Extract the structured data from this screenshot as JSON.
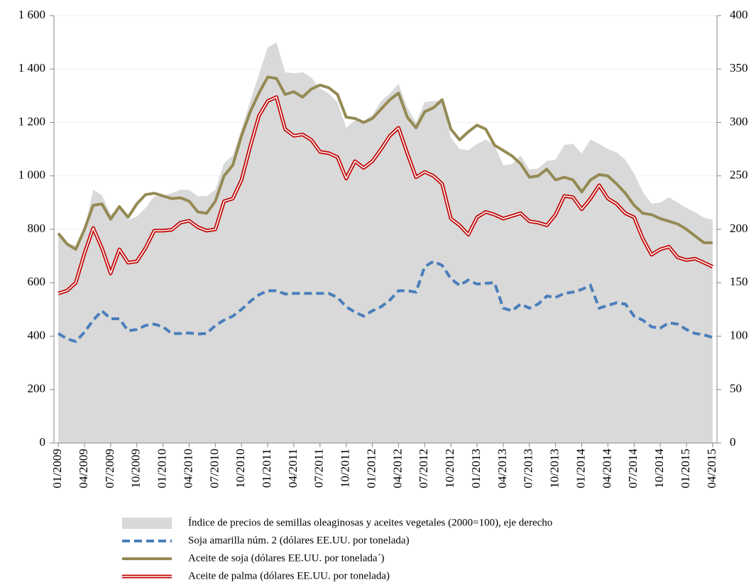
{
  "chart_data": {
    "type": "line",
    "categories": [
      "01/2009",
      null,
      null,
      "04/2009",
      null,
      null,
      "07/2009",
      null,
      null,
      "10/2009",
      null,
      null,
      "01/2010",
      null,
      null,
      "04/2010",
      null,
      null,
      "07/2010",
      null,
      null,
      "10/2010",
      null,
      null,
      "01/2011",
      null,
      null,
      "04/2011",
      null,
      null,
      "07/2011",
      null,
      null,
      "10/2011",
      null,
      null,
      "01/2012",
      null,
      null,
      "04/2012",
      null,
      null,
      "07/2012",
      null,
      null,
      "10/2012",
      null,
      null,
      "01/2013",
      null,
      null,
      "04/2013",
      null,
      null,
      "07/2013",
      null,
      null,
      "10/2013",
      null,
      null,
      "01/2014",
      null,
      null,
      "04/2014",
      null,
      null,
      "07/2014",
      null,
      null,
      "10/2014",
      null,
      null,
      "01/2015",
      null,
      null,
      "04/2015"
    ],
    "series": [
      {
        "name": "Índice de precios de semillas oleaginosas y aceites vegetales (2000=100), eje derecho",
        "color": "#d9d9d9",
        "style": "area",
        "axis": "y2",
        "values": [
          194,
          186,
          185,
          200,
          237,
          232,
          214,
          220,
          209,
          212,
          220,
          231,
          231,
          234,
          237,
          237,
          231,
          231,
          237,
          262,
          269,
          294,
          320,
          345,
          370,
          375,
          347,
          346,
          347,
          342,
          332,
          327,
          319,
          295,
          302,
          301,
          307,
          320,
          327,
          336,
          314,
          300,
          319,
          320,
          321,
          286,
          275,
          274,
          280,
          284,
          279,
          260,
          261,
          269,
          256,
          257,
          264,
          265,
          279,
          280,
          271,
          284,
          280,
          275,
          272,
          265,
          252,
          235,
          224,
          225,
          230,
          225,
          220,
          216,
          211,
          209
        ]
      },
      {
        "name": "Soja amarilla núm. 2 (dólares EE.UU. por tonelada)",
        "color": "#4a7ebb",
        "style": "dashed",
        "values": [
          410,
          390,
          380,
          415,
          460,
          495,
          465,
          465,
          420,
          425,
          440,
          445,
          435,
          410,
          410,
          412,
          408,
          410,
          440,
          460,
          475,
          500,
          530,
          555,
          570,
          570,
          558,
          560,
          560,
          560,
          560,
          560,
          545,
          510,
          490,
          475,
          495,
          510,
          535,
          570,
          570,
          565,
          660,
          680,
          665,
          615,
          590,
          610,
          595,
          598,
          600,
          505,
          495,
          520,
          505,
          520,
          550,
          545,
          560,
          565,
          575,
          590,
          505,
          515,
          525,
          520,
          475,
          460,
          435,
          430,
          450,
          445,
          425,
          410,
          405,
          395
        ]
      },
      {
        "name": "Aceite de soja (dólares EE.UU. por tonelada´)",
        "color": "#948a54",
        "style": "solid",
        "values": [
          785,
          745,
          725,
          800,
          890,
          895,
          838,
          885,
          845,
          895,
          930,
          935,
          925,
          915,
          918,
          905,
          865,
          860,
          905,
          1000,
          1040,
          1150,
          1240,
          1310,
          1370,
          1365,
          1305,
          1315,
          1295,
          1325,
          1340,
          1330,
          1305,
          1220,
          1215,
          1200,
          1215,
          1250,
          1285,
          1310,
          1220,
          1180,
          1240,
          1255,
          1285,
          1175,
          1135,
          1165,
          1190,
          1175,
          1115,
          1095,
          1075,
          1045,
          995,
          1000,
          1025,
          985,
          995,
          985,
          940,
          985,
          1005,
          1000,
          970,
          935,
          890,
          860,
          855,
          840,
          830,
          820,
          800,
          775,
          750,
          750
        ]
      },
      {
        "name": "Aceite de palma (dólares EE.UU. por tonelada)",
        "color": "#c00000",
        "style": "double",
        "values": [
          560,
          570,
          600,
          710,
          805,
          730,
          635,
          725,
          675,
          680,
          730,
          795,
          795,
          798,
          825,
          832,
          808,
          795,
          800,
          905,
          915,
          985,
          1110,
          1225,
          1280,
          1295,
          1175,
          1150,
          1155,
          1135,
          1090,
          1085,
          1070,
          990,
          1055,
          1030,
          1055,
          1100,
          1150,
          1180,
          1085,
          995,
          1015,
          1000,
          970,
          840,
          815,
          780,
          845,
          865,
          855,
          840,
          850,
          860,
          830,
          825,
          815,
          855,
          925,
          920,
          875,
          915,
          965,
          915,
          895,
          860,
          845,
          765,
          705,
          725,
          735,
          695,
          685,
          690,
          675,
          660
        ]
      }
    ],
    "ylim": [
      0,
      1600
    ],
    "yticks": [
      0,
      200,
      400,
      600,
      800,
      {
        "value": 1000,
        "label": "1 000"
      },
      {
        "value": 1200,
        "label": "1 200"
      },
      {
        "value": 1400,
        "label": "1 400"
      },
      {
        "value": 1600,
        "label": "1 600"
      }
    ],
    "y2lim": [
      0,
      400
    ],
    "y2ticks": [
      0,
      50,
      100,
      150,
      200,
      250,
      300,
      350,
      400
    ],
    "grid": true
  }
}
